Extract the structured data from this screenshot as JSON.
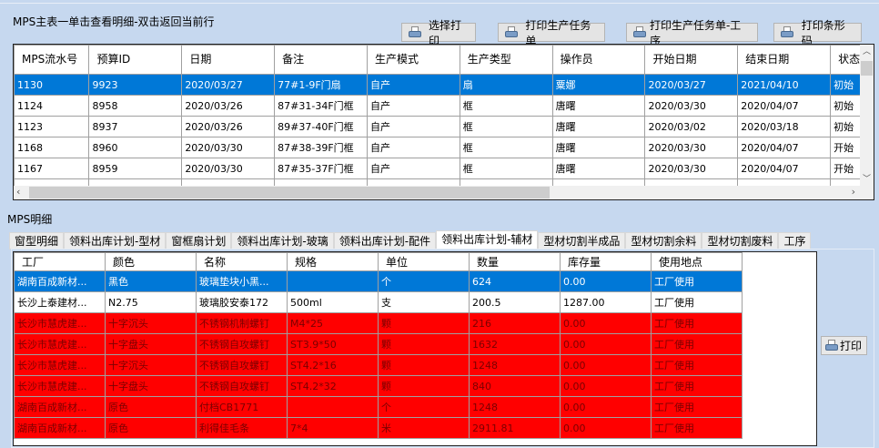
{
  "master": {
    "title": "MPS主表一单击查看明细-双击返回当前行",
    "buttons": [
      "选择打印",
      "打印生产任务单",
      "打印生产任务单-工序",
      "打印条形码"
    ],
    "columns": [
      "MPS流水号",
      "预算ID",
      "日期",
      "备注",
      "生产模式",
      "生产类型",
      "操作员",
      "开始日期",
      "结束日期",
      "状态"
    ],
    "rows": [
      [
        "1130",
        "9923",
        "2020/03/27",
        "77#1-9F门扇",
        "自产",
        "扇",
        "粟娜",
        "2020/03/27",
        "2021/04/10",
        "初始"
      ],
      [
        "1124",
        "8958",
        "2020/03/26",
        "87#31-34F门框",
        "自产",
        "框",
        "唐曙",
        "2020/03/30",
        "2020/04/07",
        "初始"
      ],
      [
        "1123",
        "8937",
        "2020/03/26",
        "89#37-40F门框",
        "自产",
        "框",
        "唐曙",
        "2020/03/02",
        "2020/03/18",
        "初始"
      ],
      [
        "1168",
        "8960",
        "2020/03/30",
        "87#38-39F门框",
        "自产",
        "框",
        "唐曙",
        "2020/03/30",
        "2020/04/07",
        "开始"
      ],
      [
        "1167",
        "8959",
        "2020/03/30",
        "87#35-37F门框",
        "自产",
        "框",
        "唐曙",
        "2020/03/30",
        "2020/04/07",
        "开始"
      ]
    ],
    "selected_row": 0
  },
  "detail": {
    "title": "MPS明细",
    "tabs": [
      "窗型明细",
      "领料出库计划-型材",
      "窗框扇计划",
      "领料出库计划-玻璃",
      "领料出库计划-配件",
      "领料出库计划-辅材",
      "型材切割半成品",
      "型材切割余料",
      "型材切割废料",
      "工序"
    ],
    "active_tab": 5,
    "columns": [
      "工厂",
      "颜色",
      "名称",
      "规格",
      "单位",
      "数量",
      "库存量",
      "使用地点"
    ],
    "rows": [
      [
        "湖南百成新材...",
        "黑色",
        "玻璃垫块小黑...",
        "",
        "个",
        "624",
        "0.00",
        "工厂使用"
      ],
      [
        "长沙上泰建材...",
        "N2.75",
        "玻璃胶安泰172",
        "500ml",
        "支",
        "200.5",
        "1287.00",
        "工厂使用"
      ],
      [
        "长沙市慧虎建...",
        "十字沉头",
        "不锈钢机制螺钉",
        "M4*25",
        "颗",
        "216",
        "0.00",
        "工厂使用"
      ],
      [
        "长沙市慧虎建...",
        "十字盘头",
        "不锈钢自攻螺钉",
        "ST3.9*50",
        "颗",
        "1632",
        "0.00",
        "工厂使用"
      ],
      [
        "长沙市慧虎建...",
        "十字沉头",
        "不锈钢自攻螺钉",
        "ST4.2*16",
        "颗",
        "1248",
        "0.00",
        "工厂使用"
      ],
      [
        "长沙市慧虎建...",
        "十字盘头",
        "不锈钢自攻螺钉",
        "ST4.2*32",
        "颗",
        "840",
        "0.00",
        "工厂使用"
      ],
      [
        "湖南百成新材...",
        "原色",
        "付档CB1771",
        "",
        "个",
        "1248",
        "0.00",
        "工厂使用"
      ],
      [
        "湖南百成新材...",
        "原色",
        "利得佳毛条",
        "7*4",
        "米",
        "2911.81",
        "0.00",
        "工厂使用"
      ]
    ],
    "row_status": [
      "selected",
      "normal",
      "red",
      "red",
      "red",
      "red",
      "red",
      "red"
    ],
    "print_label": "打印"
  },
  "colors": {
    "selected": "#0078d7",
    "warning_row": "#ff0000",
    "panel": "#c6d8ef"
  }
}
